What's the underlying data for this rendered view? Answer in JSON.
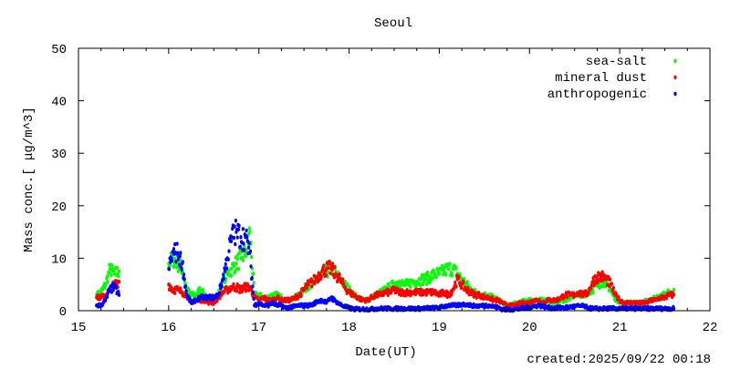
{
  "chart_data": {
    "type": "scatter",
    "title": "Seoul",
    "xlabel": "Date(UT)",
    "ylabel": "Mass conc.[ μg/m^3]",
    "xlim": [
      15,
      22
    ],
    "ylim": [
      0,
      50
    ],
    "xticks": [
      "15",
      "16",
      "17",
      "18",
      "19",
      "20",
      "21",
      "22"
    ],
    "yticks": [
      "0",
      "10",
      "20",
      "30",
      "40",
      "50"
    ],
    "x_minor_step": 0.25,
    "legend_position": "top-right",
    "footer": "created:2025/09/22 00:18",
    "series": [
      {
        "name": "sea-salt",
        "color": "#00ff00",
        "segments": [
          {
            "x_start": 15.2,
            "step": 0.05,
            "values": [
              3,
              3.5,
              5,
              8,
              7,
              7.5
            ]
          },
          {
            "x_start": 16.0,
            "step": 0.05,
            "values": [
              9,
              10,
              9,
              8,
              4,
              3,
              3,
              4,
              3,
              2,
              2,
              3,
              6,
              7,
              8,
              9,
              10,
              11,
              15,
              3,
              3,
              2.5,
              2.5,
              3,
              3,
              2.5,
              2,
              2,
              2.5,
              3,
              4,
              5,
              5,
              6,
              7,
              7.5,
              8,
              7,
              6,
              5,
              4,
              3,
              2.5,
              2,
              2,
              2.5,
              3,
              3.5,
              4,
              4.5,
              5,
              5.5,
              5,
              5,
              5.5,
              5.5,
              6,
              6,
              6.5,
              7,
              7,
              7.5,
              8,
              8,
              7,
              6,
              5,
              4,
              3.5,
              3,
              3,
              3,
              2.5,
              2,
              1.5,
              1,
              1,
              1.5,
              1.5,
              2,
              2,
              2,
              2,
              2,
              2,
              1.5,
              1.5,
              2,
              2,
              2.5,
              3,
              3,
              3,
              3.5,
              4,
              5,
              5.5,
              5,
              4,
              2,
              1.5,
              1.5,
              1.5,
              1.5,
              1.5,
              1.5,
              2,
              2,
              2.5,
              3,
              3,
              3.5,
              4
            ]
          }
        ]
      },
      {
        "name": "mineral dust",
        "color": "#ff0000",
        "segments": [
          {
            "x_start": 15.2,
            "step": 0.05,
            "values": [
              2.5,
              2.5,
              3,
              4,
              5,
              5.5
            ]
          },
          {
            "x_start": 16.0,
            "step": 0.05,
            "values": [
              5,
              4,
              4,
              3.5,
              3,
              1.5,
              2,
              2,
              2,
              1.5,
              1.5,
              2.5,
              3.5,
              4,
              4.5,
              4.5,
              4,
              4.5,
              4.5,
              2.5,
              2,
              2.5,
              2,
              2,
              2.5,
              2,
              2,
              2,
              2.5,
              3,
              4,
              5,
              5.5,
              6.5,
              7.5,
              8,
              8,
              7,
              6,
              4.5,
              3.5,
              3,
              2.5,
              2,
              2,
              2.5,
              3,
              3,
              3.5,
              3.5,
              4,
              3.5,
              3.5,
              3.5,
              3.5,
              3.5,
              3.5,
              3.5,
              3.5,
              3.5,
              3,
              3.5,
              3,
              4,
              6,
              5,
              4,
              3.5,
              3,
              3,
              2.5,
              2.5,
              2,
              2,
              1.5,
              1,
              1,
              1,
              1.5,
              1.5,
              1.5,
              2,
              2,
              1.5,
              2,
              2,
              2,
              2.5,
              3,
              3,
              3,
              3.5,
              3,
              3.5,
              5.5,
              6.5,
              6.5,
              6,
              5,
              3,
              2,
              1.5,
              1.5,
              1.5,
              1.5,
              1.5,
              1.5,
              2,
              2,
              2.5,
              2.5,
              3,
              3
            ]
          }
        ]
      },
      {
        "name": "anthropogenic",
        "color": "#0000ff",
        "segments": [
          {
            "x_start": 15.2,
            "step": 0.05,
            "values": [
              1,
              1,
              2,
              4,
              4.5,
              3
            ]
          },
          {
            "x_start": 16.0,
            "step": 0.05,
            "values": [
              8,
              11,
              11,
              9,
              3,
              1.5,
              2,
              2.5,
              2.5,
              2.5,
              2.5,
              3,
              6,
              10,
              14,
              15,
              14,
              14,
              11,
              1,
              1.5,
              1,
              1,
              1.5,
              1,
              1,
              0.5,
              0.7,
              0.8,
              1,
              1,
              1,
              1.2,
              1.8,
              2,
              1.5,
              2.5,
              1.8,
              1.2,
              0.8,
              0.5,
              0.3,
              0.3,
              0.3,
              0.3,
              0.3,
              0.4,
              0.4,
              0.4,
              0.4,
              0.4,
              0.4,
              0.4,
              0.4,
              0.4,
              0.4,
              0.4,
              0.5,
              0.5,
              0.5,
              0.6,
              0.8,
              1,
              1,
              1,
              1.2,
              1.2,
              1,
              0.9,
              0.9,
              1,
              1,
              0.8,
              0.6,
              0.3,
              0.2,
              0.2,
              0.3,
              0.4,
              0.5,
              0.6,
              0.8,
              1,
              0.8,
              0.6,
              0.5,
              0.5,
              0.6,
              0.6,
              0.7,
              0.8,
              0.9,
              0.9,
              0.5,
              0.4,
              0.4,
              0.4,
              0.4,
              0.4,
              0.4,
              0.4,
              0.4,
              0.4,
              0.4,
              0.4,
              0.4,
              0.4,
              0.4,
              0.4,
              0.4,
              0.4,
              0.4,
              0.4
            ]
          }
        ]
      }
    ]
  }
}
